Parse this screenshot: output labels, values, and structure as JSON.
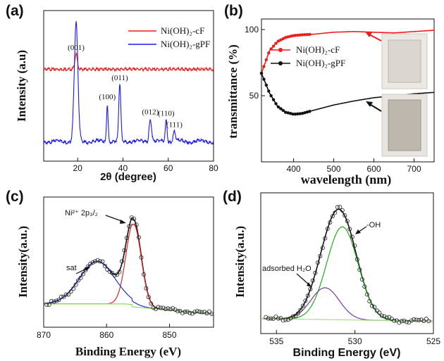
{
  "chart_data": [
    {
      "id": "a",
      "type": "line",
      "panel_label": "(a)",
      "xlabel": "2θ (degree)",
      "ylabel": "Intensity (a.u)",
      "xlim": [
        5,
        80
      ],
      "xticks": [
        20,
        40,
        60,
        80
      ],
      "legend_placement": "top-right",
      "legend": [
        "Ni(OH)₂-cF",
        "Ni(OH)₂-gPF"
      ],
      "colors": {
        "cF": "#ee1c1c",
        "gPF": "#1a1aee"
      },
      "peak_labels": [
        {
          "text": "(001)",
          "x": 19.3,
          "series": "cF"
        },
        {
          "text": "(100)",
          "x": 33.1,
          "series": "gPF"
        },
        {
          "text": "(011)",
          "x": 38.6,
          "series": "gPF"
        },
        {
          "text": "(012)",
          "x": 52.1,
          "series": "gPF"
        },
        {
          "text": "(110)",
          "x": 59.1,
          "series": "gPF"
        },
        {
          "text": "(111)",
          "x": 62.7,
          "series": "gPF"
        }
      ],
      "series": [
        {
          "name": "Ni(OH)₂-cF",
          "baseline": 0.62,
          "peaks": [
            [
              19.3,
              0.12,
              0.55
            ]
          ]
        },
        {
          "name": "Ni(OH)₂-gPF",
          "baseline": 0.05,
          "peaks": [
            [
              19.3,
              0.93,
              0.8
            ],
            [
              33.1,
              0.3,
              0.35
            ],
            [
              38.6,
              0.45,
              0.45
            ],
            [
              52.1,
              0.18,
              0.55
            ],
            [
              59.1,
              0.17,
              0.4
            ],
            [
              62.7,
              0.08,
              0.5
            ]
          ]
        }
      ]
    },
    {
      "id": "b",
      "type": "line",
      "panel_label": "(b)",
      "xlabel": "wavelength (nm)",
      "ylabel": "transmittance (%)",
      "xlim": [
        320,
        750
      ],
      "ylim": [
        0,
        108
      ],
      "xticks": [
        400,
        500,
        600,
        700
      ],
      "yticks": [
        50,
        100
      ],
      "legend_placement": "top-left",
      "legend": [
        "Ni(OH)₂-cF",
        "Ni(OH)₂-gPF"
      ],
      "colors": {
        "cF": "#ee1c1c",
        "gPF": "#111111"
      },
      "series": [
        {
          "name": "Ni(OH)₂-cF",
          "x": [
            320,
            340,
            360,
            380,
            400,
            420,
            450,
            500,
            550,
            600,
            650,
            700,
            750
          ],
          "y": [
            67,
            84,
            91,
            94,
            95.5,
            96,
            96.5,
            98,
            98.5,
            98,
            97.5,
            98.5,
            99.5
          ]
        },
        {
          "name": "Ni(OH)₂-gPF",
          "x": [
            320,
            340,
            360,
            380,
            400,
            420,
            450,
            500,
            550,
            600,
            650,
            700,
            750
          ],
          "y": [
            67,
            52,
            42,
            37.5,
            36,
            36.5,
            39,
            43,
            46,
            48.5,
            50,
            51.5,
            52.5
          ]
        }
      ]
    },
    {
      "id": "c",
      "type": "line",
      "panel_label": "(c)",
      "xlabel": "Binding Energy (eV)",
      "ylabel": "Intensity(a.u.)",
      "xlim": [
        870,
        843
      ],
      "xticks": [
        870,
        860,
        850
      ],
      "annotations": [
        {
          "text": "sat",
          "x": 861.5
        },
        {
          "text": "Ni²⁺ 2p₃/₂",
          "x": 855.7
        }
      ],
      "components": [
        {
          "name": "envelope",
          "color": "#111111",
          "peaks": [
            [
              861.5,
              0.38,
              2.8
            ],
            [
              855.7,
              0.74,
              1.2
            ]
          ]
        },
        {
          "name": "main",
          "color": "#ee2222",
          "peaks": [
            [
              855.7,
              0.74,
              1.2
            ]
          ]
        },
        {
          "name": "sat",
          "color": "#2233cc",
          "peaks": [
            [
              861.5,
              0.38,
              2.8
            ]
          ]
        },
        {
          "name": "background",
          "color": "#88dd66"
        }
      ]
    },
    {
      "id": "d",
      "type": "line",
      "panel_label": "(d)",
      "xlabel": "Binding Energy (eV)",
      "ylabel": "Intensity(a.u.)",
      "xlim": [
        536,
        525
      ],
      "xticks": [
        535,
        530,
        525
      ],
      "annotations": [
        {
          "text": "-OH",
          "x": 530.8
        },
        {
          "text": "adsorbed H₂O",
          "x": 531.9
        }
      ],
      "components": [
        {
          "name": "envelope",
          "color": "#111111",
          "peaks": [
            [
              530.8,
              0.76,
              1.0
            ],
            [
              531.9,
              0.26,
              0.9
            ]
          ]
        },
        {
          "name": "OH",
          "color": "#22aa22",
          "peaks": [
            [
              530.8,
              0.76,
              1.0
            ]
          ]
        },
        {
          "name": "H2O",
          "color": "#7a3a9a",
          "peaks": [
            [
              531.9,
              0.26,
              0.9
            ]
          ]
        },
        {
          "name": "background",
          "color": "#aadd88"
        }
      ]
    }
  ]
}
